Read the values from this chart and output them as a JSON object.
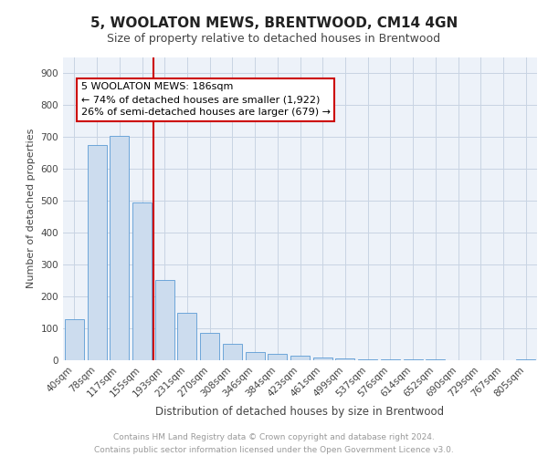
{
  "title": "5, WOOLATON MEWS, BRENTWOOD, CM14 4GN",
  "subtitle": "Size of property relative to detached houses in Brentwood",
  "xlabel": "Distribution of detached houses by size in Brentwood",
  "ylabel": "Number of detached properties",
  "bar_color": "#ccdcee",
  "bar_edge_color": "#5b9bd5",
  "categories": [
    "40sqm",
    "78sqm",
    "117sqm",
    "155sqm",
    "193sqm",
    "231sqm",
    "270sqm",
    "308sqm",
    "346sqm",
    "384sqm",
    "423sqm",
    "461sqm",
    "499sqm",
    "537sqm",
    "576sqm",
    "614sqm",
    "652sqm",
    "690sqm",
    "729sqm",
    "767sqm",
    "805sqm"
  ],
  "values": [
    130,
    675,
    703,
    493,
    252,
    150,
    85,
    52,
    26,
    20,
    15,
    10,
    7,
    4,
    3,
    2,
    2,
    1,
    1,
    1,
    3
  ],
  "vline_position": 3.5,
  "vline_color": "#cc0000",
  "annotation_text": "5 WOOLATON MEWS: 186sqm\n← 74% of detached houses are smaller (1,922)\n26% of semi-detached houses are larger (679) →",
  "annotation_box_color": "#ffffff",
  "annotation_box_edge": "#cc0000",
  "ylim": [
    0,
    950
  ],
  "yticks": [
    0,
    100,
    200,
    300,
    400,
    500,
    600,
    700,
    800,
    900
  ],
  "bg_color": "#edf2f9",
  "footer_line1": "Contains HM Land Registry data © Crown copyright and database right 2024.",
  "footer_line2": "Contains public sector information licensed under the Open Government Licence v3.0.",
  "title_fontsize": 11,
  "subtitle_fontsize": 9,
  "ylabel_fontsize": 8,
  "xlabel_fontsize": 8.5,
  "tick_fontsize": 7.5,
  "footer_fontsize": 6.5,
  "annotation_fontsize": 8
}
